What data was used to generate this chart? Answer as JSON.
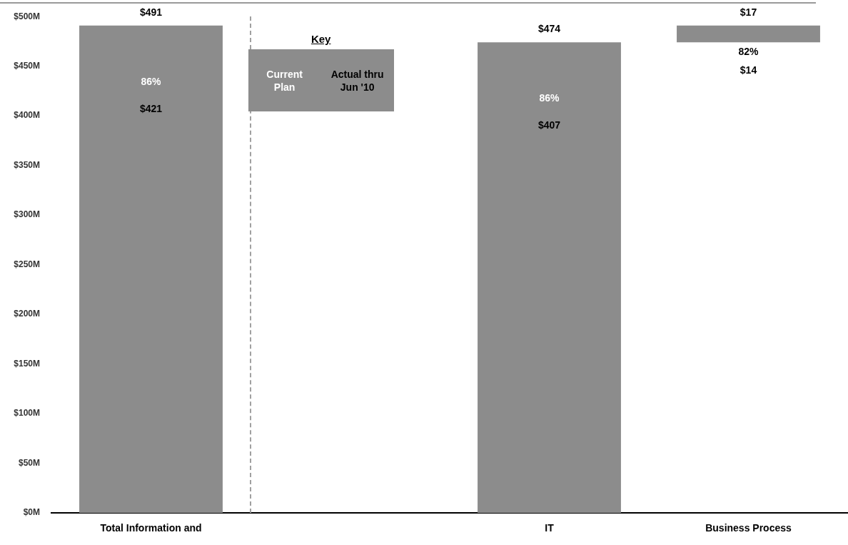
{
  "chart_data": {
    "type": "bar",
    "categories": [
      "Total Information and",
      null,
      "IT",
      "Business Process"
    ],
    "series": [
      {
        "name": "Current Plan",
        "color": "#8c8c8c",
        "values": [
          491,
          null,
          474,
          17
        ],
        "base": [
          null,
          null,
          null,
          474
        ],
        "value_labels": [
          "$491",
          null,
          "$474",
          "$17"
        ]
      }
    ],
    "ylim": [
      0,
      500
    ],
    "yticks": [
      {
        "value": 0,
        "label": "$0M"
      },
      {
        "value": 50,
        "label": "$50M"
      },
      {
        "value": 100,
        "label": "$100M"
      },
      {
        "value": 150,
        "label": "$150M"
      },
      {
        "value": 200,
        "label": "$200M"
      },
      {
        "value": 250,
        "label": "$250M"
      },
      {
        "value": 300,
        "label": "$300M"
      },
      {
        "value": 350,
        "label": "$350M"
      },
      {
        "value": 400,
        "label": "$400M"
      },
      {
        "value": 450,
        "label": "$450M"
      },
      {
        "value": 500,
        "label": "$500M"
      }
    ],
    "legend": "top left",
    "legend_title": "Key",
    "annotations": [
      "Actual thru Jun '10",
      "86%",
      "$421",
      "86%",
      "$407",
      "82%",
      "$14"
    ]
  }
}
